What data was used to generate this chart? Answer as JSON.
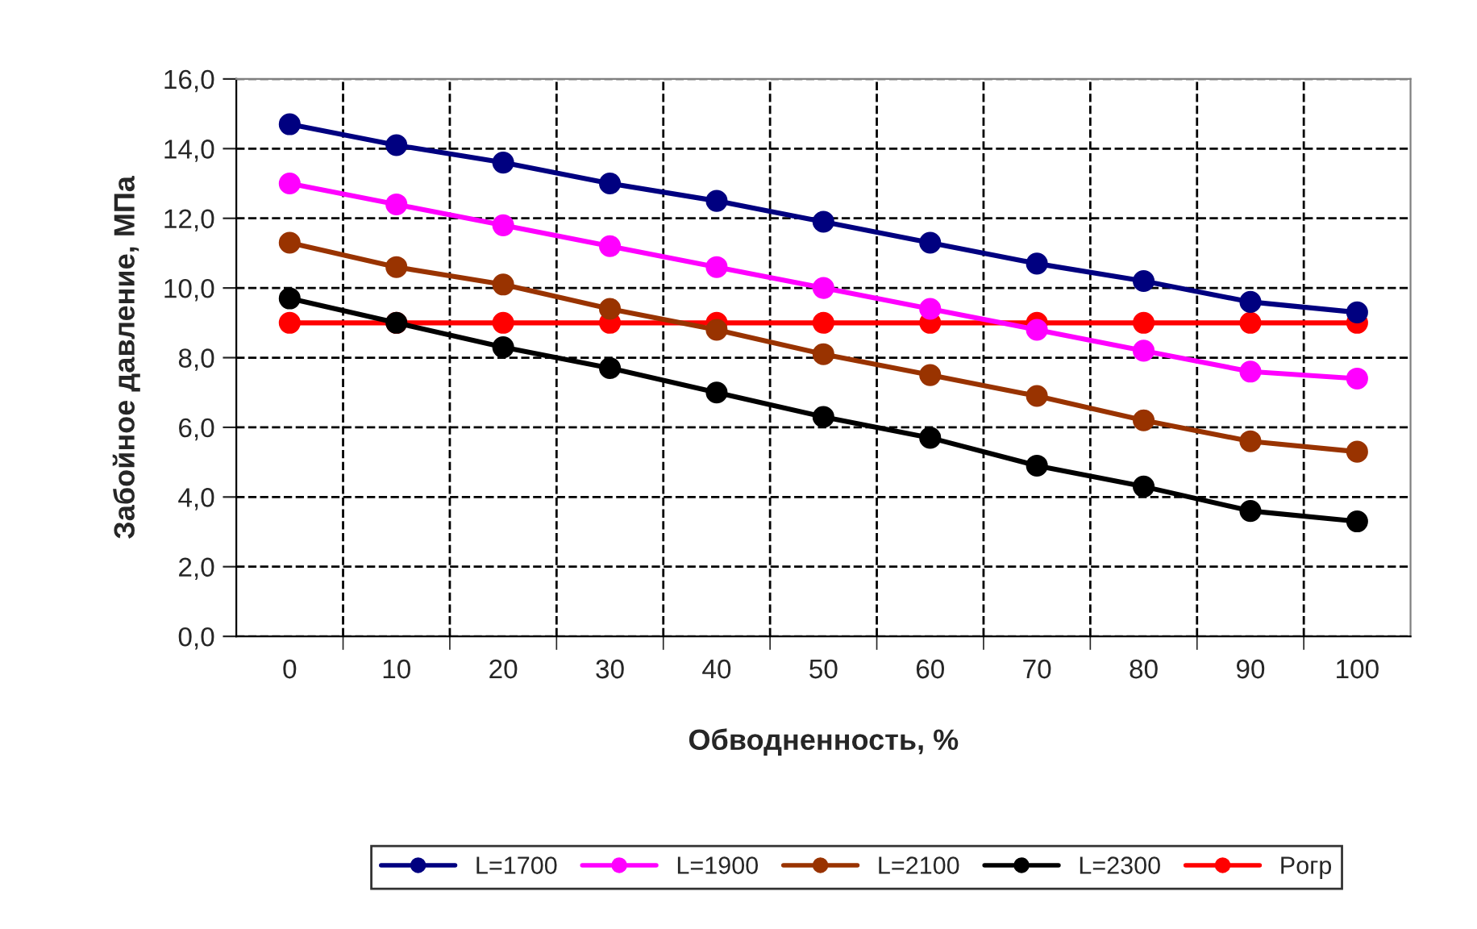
{
  "chart_data": {
    "type": "line",
    "xlabel": "Обводненность, %",
    "ylabel": "Забойное давление, МПа",
    "categories": [
      "0",
      "10",
      "20",
      "30",
      "40",
      "50",
      "60",
      "70",
      "80",
      "90",
      "100"
    ],
    "ylim": [
      0,
      16
    ],
    "yticks": [
      {
        "value": 0,
        "label": "0,0"
      },
      {
        "value": 2,
        "label": "2,0"
      },
      {
        "value": 4,
        "label": "4,0"
      },
      {
        "value": 6,
        "label": "6,0"
      },
      {
        "value": 8,
        "label": "8,0"
      },
      {
        "value": 10,
        "label": "10,0"
      },
      {
        "value": 12,
        "label": "12,0"
      },
      {
        "value": 14,
        "label": "14,0"
      },
      {
        "value": 16,
        "label": "16,0"
      }
    ],
    "grid": true,
    "legend": "bottom",
    "marker": "circle",
    "line_style": "solid",
    "series": [
      {
        "name": "L=1700",
        "color": "#000080",
        "values": [
          14.7,
          14.1,
          13.6,
          13.0,
          12.5,
          11.9,
          11.3,
          10.7,
          10.2,
          9.6,
          9.3
        ]
      },
      {
        "name": "L=1900",
        "color": "#ff00ff",
        "values": [
          13.0,
          12.4,
          11.8,
          11.2,
          10.6,
          10.0,
          9.4,
          8.8,
          8.2,
          7.6,
          7.4
        ]
      },
      {
        "name": "L=2100",
        "color": "#993300",
        "values": [
          11.3,
          10.6,
          10.1,
          9.4,
          8.8,
          8.1,
          7.5,
          6.9,
          6.2,
          5.6,
          5.3
        ]
      },
      {
        "name": "L=2300",
        "color": "#000000",
        "values": [
          9.7,
          9.0,
          8.3,
          7.7,
          7.0,
          6.3,
          5.7,
          4.9,
          4.3,
          3.6,
          3.3
        ]
      },
      {
        "name": "Pогр",
        "color": "#ff0000",
        "values": [
          9.0,
          9.0,
          9.0,
          9.0,
          9.0,
          9.0,
          9.0,
          9.0,
          9.0,
          9.0,
          9.0
        ]
      }
    ]
  }
}
